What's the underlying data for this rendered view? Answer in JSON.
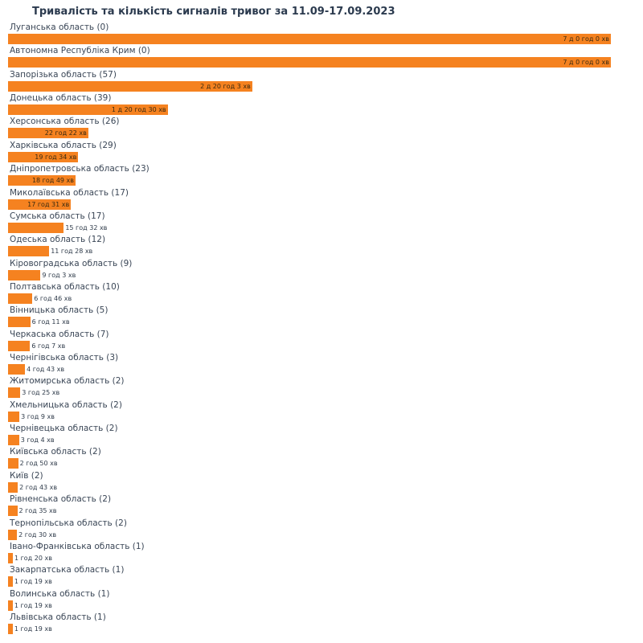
{
  "chart_data": {
    "type": "bar",
    "orientation": "horizontal",
    "title": "Тривалість та кількість сигналів тривог за 11.09-17.09.2023",
    "value_unit": "hours",
    "xlim": [
      0,
      168
    ],
    "grid": false,
    "legend": "none",
    "colors": {
      "bar": "#f58220",
      "title": "#2b3a4e",
      "label": "#3a4656"
    },
    "categories": [
      "Луганська область (0)",
      "Автономна Республіка Крим (0)",
      "Запорізька область (57)",
      "Донецька область (39)",
      "Херсонська область (26)",
      "Харківська область (29)",
      "Дніпропетровська область (23)",
      "Миколаївська область (17)",
      "Сумська область (17)",
      "Одеська область (12)",
      "Кіровоградська область (9)",
      "Полтавська область (10)",
      "Вінницька область (5)",
      "Черкаська область (7)",
      "Чернігівська область (3)",
      "Житомирська область (2)",
      "Хмельницька область (2)",
      "Чернівецька область (2)",
      "Київська область (2)",
      "Київ (2)",
      "Рівненська область (2)",
      "Тернопільська область (2)",
      "Івано-Франківська область (1)",
      "Закарпатська область (1)",
      "Волинська область (1)",
      "Львівська область (1)"
    ],
    "values": [
      168,
      168,
      68.05,
      44.5,
      22.37,
      19.57,
      18.82,
      17.52,
      15.53,
      11.47,
      9.05,
      6.77,
      6.18,
      6.12,
      4.72,
      3.42,
      3.15,
      3.07,
      2.83,
      2.72,
      2.58,
      2.5,
      1.33,
      1.32,
      1.32,
      1.32
    ],
    "value_labels": [
      "7 д 0 год 0 хв",
      "7 д 0 год 0 хв",
      "2 д 20 год 3 хв",
      "1 д 20 год 30 хв",
      "22 год 22 хв",
      "19 год 34 хв",
      "18 год 49 хв",
      "17 год 31 хв",
      "15 год 32 хв",
      "11 год 28 хв",
      "9 год 3 хв",
      "6 год 46 хв",
      "6 год 11 хв",
      "6 год 7 хв",
      "4 год 43 хв",
      "3 год 25 хв",
      "3 год 9 хв",
      "3 год 4 хв",
      "2 год 50 хв",
      "2 год 43 хв",
      "2 год 35 хв",
      "2 год 30 хв",
      "1 год 20 хв",
      "1 год 19 хв",
      "1 год 19 хв",
      "1 год 19 хв"
    ]
  }
}
